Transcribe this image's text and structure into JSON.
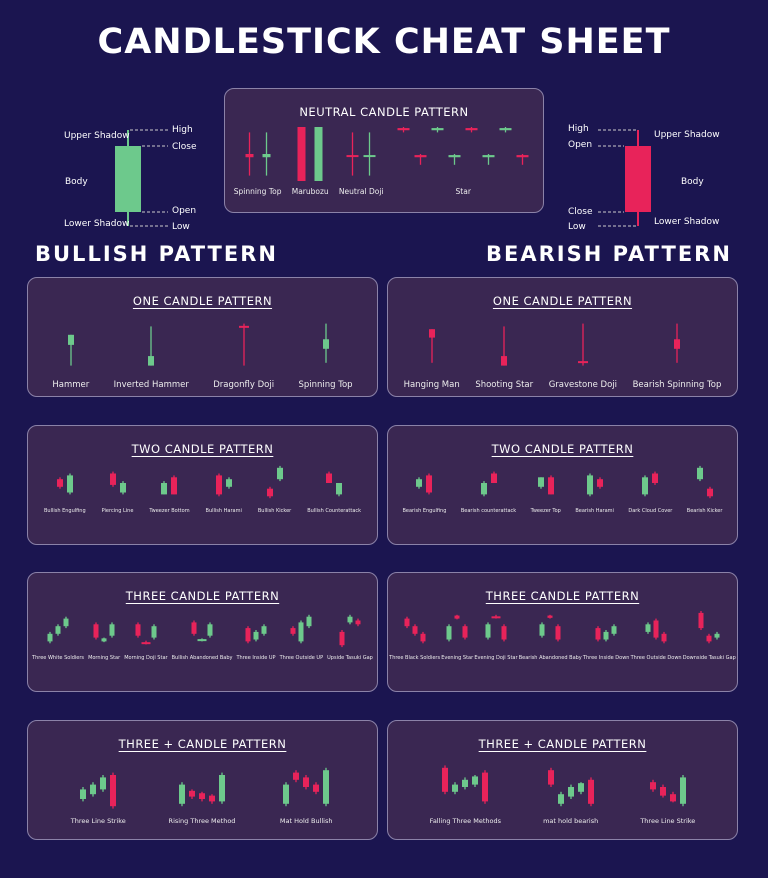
{
  "title": "CANDLESTICK CHEAT SHEET",
  "colors": {
    "background": "#1b1550",
    "panel": "#3a2752",
    "bullish": "#6dc98c",
    "bearish": "#e8235a"
  },
  "anatomy_bullish": {
    "upper_shadow": "Upper Shadow",
    "high": "High",
    "close": "Close",
    "body": "Body",
    "open": "Open",
    "lower_shadow": "Lower Shadow",
    "low": "Low"
  },
  "anatomy_bearish": {
    "high": "High",
    "upper_shadow": "Upper Shadow",
    "open": "Open",
    "body": "Body",
    "close": "Close",
    "lower_shadow": "Lower Shadow",
    "low": "Low"
  },
  "neutral": {
    "title": "NEUTRAL CANDLE PATTERN",
    "patterns": [
      "Spinning Top",
      "Marubozu",
      "Neutral Doji",
      "Star"
    ]
  },
  "bullish": {
    "heading": "BULLISH PATTERN",
    "one": {
      "title": "ONE CANDLE PATTERN",
      "patterns": [
        "Hammer",
        "Inverted Hammer",
        "Dragonfly Doji",
        "Spinning Top"
      ]
    },
    "two": {
      "title": "TWO CANDLE PATTERN",
      "patterns": [
        "Bullish Engulfing",
        "Piercing Line",
        "Tweezer Bottom",
        "Bullish Harami",
        "Bullish Kicker",
        "Bullish Counterattack"
      ]
    },
    "three": {
      "title": "THREE  CANDLE PATTERN",
      "patterns": [
        "Three White Soldiers",
        "Morning Star",
        "Morning Doji Star",
        "Bullish Abandoned Baby",
        "Three Inside UP",
        "Three Outside UP",
        "Upside Tasuki Gap"
      ]
    },
    "more": {
      "title": "THREE + CANDLE PATTERN",
      "patterns": [
        "Three Line Strike",
        "Rising Three Method",
        "Mat Hold Bullish"
      ]
    }
  },
  "bearish": {
    "heading": "BEARISH PATTERN",
    "one": {
      "title": "ONE CANDLE PATTERN",
      "patterns": [
        "Hanging Man",
        "Shooting Star",
        "Gravestone Doji",
        "Bearish Spinning Top"
      ]
    },
    "two": {
      "title": "TWO CANDLE PATTERN",
      "patterns": [
        "Bearish Engulfing",
        "Bearish counterattack",
        "Tweezer Top",
        "Bearish Harami",
        "Dark Cloud Cover",
        "Bearish Kicker"
      ]
    },
    "three": {
      "title": "THREE  CANDLE PATTERN",
      "patterns": [
        "Three Black Soldiers",
        "Evening Star",
        "Evening Doji Star",
        "Bearish Abandoned Baby",
        "Three Inside Down",
        "Three Outside Down",
        "Downside Tasuki Gap"
      ]
    },
    "more": {
      "title": "THREE + CANDLE PATTERN",
      "patterns": [
        "Falling Three Methods",
        "mat hold bearish",
        "Three Line Strike"
      ]
    }
  }
}
